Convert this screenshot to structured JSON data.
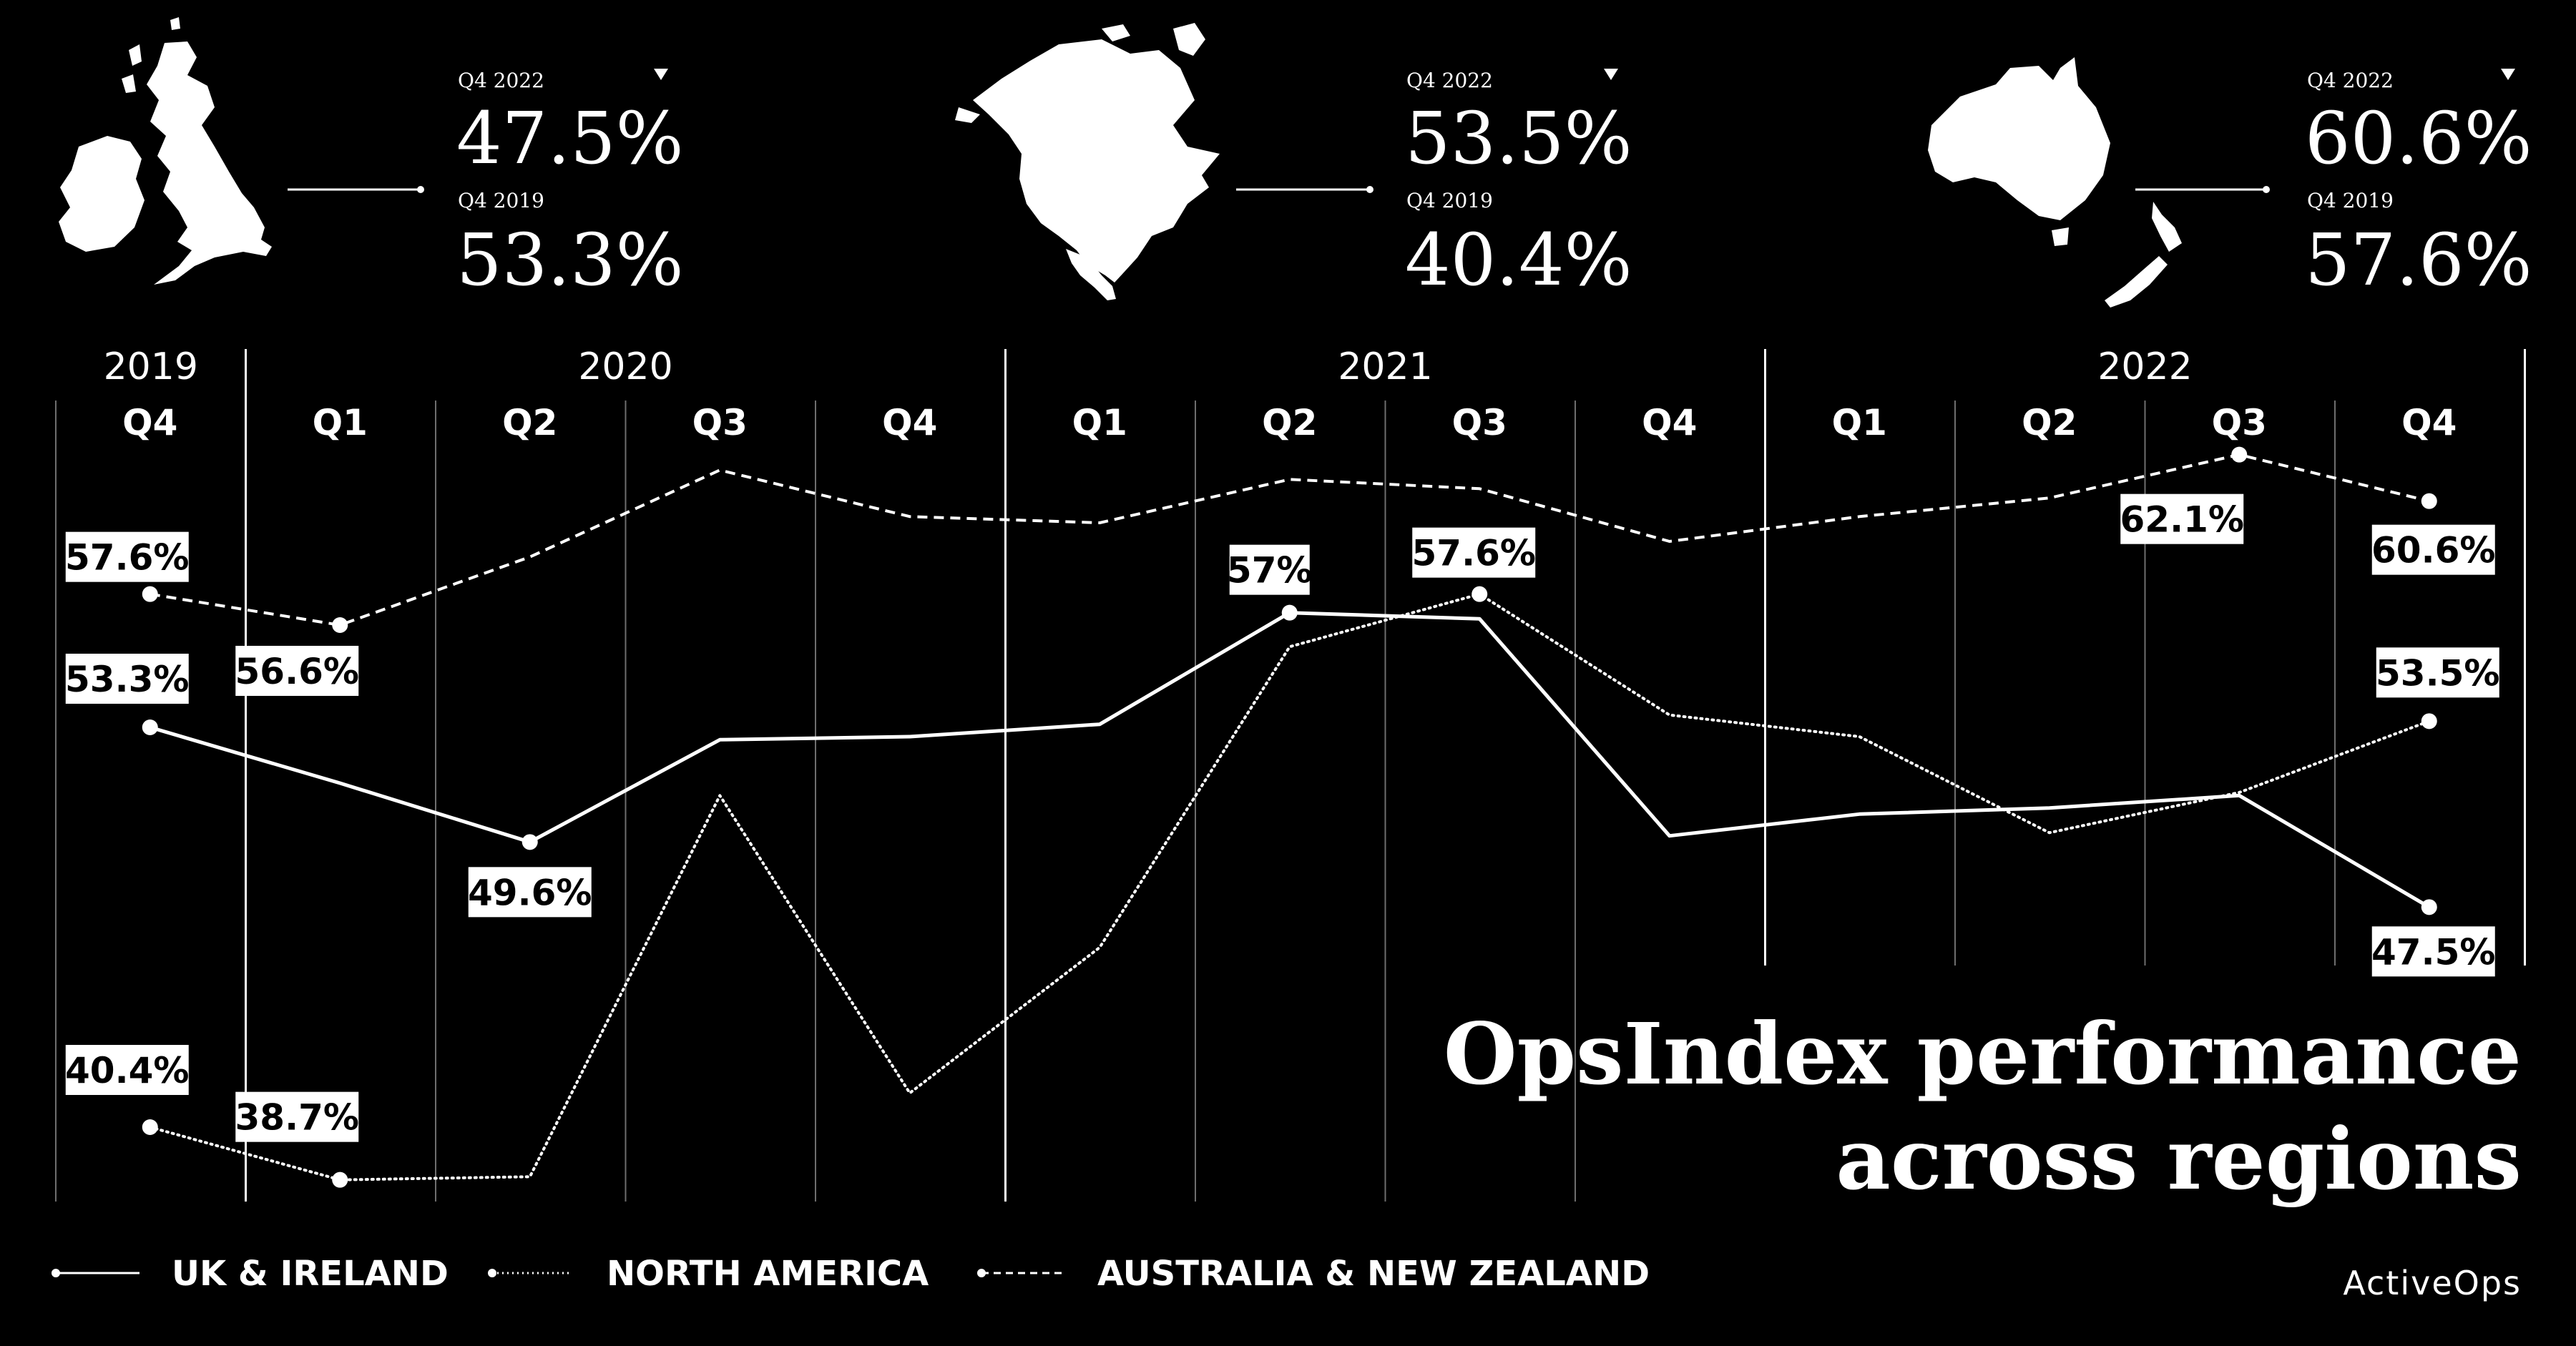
{
  "colors": {
    "background": "#000000",
    "foreground": "#ffffff"
  },
  "summary": [
    {
      "map_icon": "uk-ireland-map",
      "label_current": "Q4 2022",
      "value_current": "47.5%",
      "label_previous": "Q4 2019",
      "value_previous": "53.3%",
      "indicator_icon": "triangle-down-icon"
    },
    {
      "map_icon": "north-america-map",
      "label_current": "Q4 2022",
      "value_current": "53.5%",
      "label_previous": "Q4 2019",
      "value_previous": "40.4%",
      "indicator_icon": "triangle-down-icon"
    },
    {
      "map_icon": "australia-new-zealand-map",
      "label_current": "Q4 2022",
      "value_current": "60.6%",
      "label_previous": "Q4 2019",
      "value_previous": "57.6%",
      "indicator_icon": "triangle-down-icon"
    }
  ],
  "chart_data": {
    "type": "line",
    "title": "OpsIndex performance across regions",
    "years": [
      "2019",
      "2020",
      "2021",
      "2022"
    ],
    "categories": [
      "Q4",
      "Q1",
      "Q2",
      "Q3",
      "Q4",
      "Q1",
      "Q2",
      "Q3",
      "Q4",
      "Q1",
      "Q2",
      "Q3",
      "Q4"
    ],
    "ylim": [
      38,
      64
    ],
    "grid": true,
    "legend": "bottom-left",
    "series": [
      {
        "name": "UK & IRELAND",
        "style": "solid",
        "values": [
          53.3,
          51.5,
          49.6,
          52.9,
          53.0,
          53.4,
          57.0,
          56.8,
          49.8,
          50.5,
          50.7,
          51.1,
          47.5
        ],
        "labels": [
          {
            "index": 0,
            "text": "53.3%"
          },
          {
            "index": 2,
            "text": "49.6%"
          },
          {
            "index": 6,
            "text": "57%"
          },
          {
            "index": 12,
            "text": "47.5%"
          }
        ]
      },
      {
        "name": "NORTH AMERICA",
        "style": "dotted",
        "values": [
          40.4,
          38.7,
          38.8,
          51.1,
          41.5,
          46.2,
          55.9,
          57.6,
          53.7,
          53.0,
          49.9,
          51.2,
          53.5
        ],
        "labels": [
          {
            "index": 0,
            "text": "40.4%"
          },
          {
            "index": 1,
            "text": "38.7%"
          },
          {
            "index": 7,
            "text": "57.6%"
          },
          {
            "index": 12,
            "text": "53.5%"
          }
        ]
      },
      {
        "name": "AUSTRALIA & NEW ZEALAND",
        "style": "dashed",
        "values": [
          57.6,
          56.6,
          58.8,
          61.6,
          60.1,
          59.9,
          61.3,
          61.0,
          59.3,
          60.1,
          60.7,
          62.1,
          60.6
        ],
        "labels": [
          {
            "index": 0,
            "text": "57.6%"
          },
          {
            "index": 1,
            "text": "56.6%"
          },
          {
            "index": 11,
            "text": "62.1%"
          },
          {
            "index": 12,
            "text": "60.6%"
          }
        ]
      }
    ]
  },
  "brand": "ActiveOps"
}
